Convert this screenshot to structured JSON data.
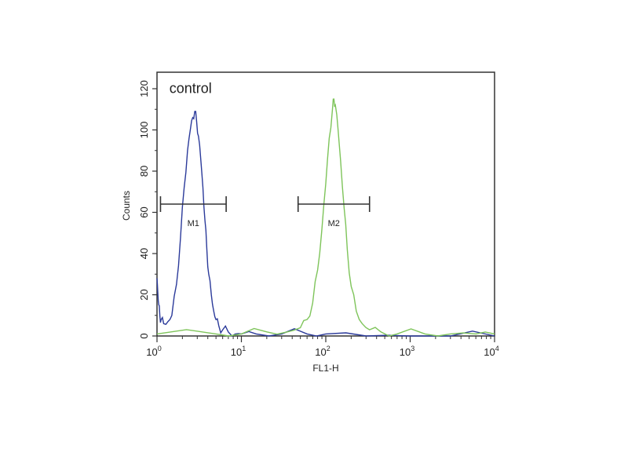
{
  "chart_data": {
    "type": "line",
    "title": "",
    "xlabel": "FL1-H",
    "ylabel": "Counts",
    "xscale": "log",
    "xlim": [
      1,
      10000
    ],
    "ylim": [
      0,
      128
    ],
    "x_ticks": [
      {
        "base": "10",
        "exp": "0",
        "value": 1
      },
      {
        "base": "10",
        "exp": "1",
        "value": 10
      },
      {
        "base": "10",
        "exp": "2",
        "value": 100
      },
      {
        "base": "10",
        "exp": "3",
        "value": 1000
      },
      {
        "base": "10",
        "exp": "4",
        "value": 10000
      }
    ],
    "y_ticks": [
      "0",
      "20",
      "40",
      "60",
      "80",
      "100",
      "120"
    ],
    "grid": false,
    "legend": "none",
    "annotations": [
      {
        "text": "control",
        "x": 1.4,
        "y": 118
      }
    ],
    "gates": [
      {
        "label": "M1",
        "x_start": 1.1,
        "x_end": 6.6,
        "y": 64
      },
      {
        "label": "M2",
        "x_start": 47,
        "x_end": 330,
        "y": 64
      }
    ],
    "series": [
      {
        "color": "#2b3a9a",
        "x": [
          1.0,
          1.02,
          1.05,
          1.08,
          1.12,
          1.2,
          1.35,
          1.5,
          1.7,
          1.9,
          2.1,
          2.3,
          2.5,
          2.65,
          2.8,
          2.95,
          3.1,
          3.3,
          3.5,
          3.7,
          3.9,
          4.1,
          4.4,
          4.7,
          5.0,
          5.4,
          6.0,
          7.0,
          8.5,
          10,
          15,
          30,
          60,
          100,
          300,
          1000,
          3000,
          10000
        ],
        "y": [
          28,
          22,
          15,
          10,
          8,
          6,
          7,
          10,
          25,
          48,
          72,
          90,
          101,
          106,
          109,
          104,
          97,
          86,
          72,
          56,
          42,
          30,
          20,
          12,
          8,
          5,
          3,
          2,
          1,
          1,
          1,
          1,
          1,
          1,
          0,
          0,
          0,
          0
        ]
      },
      {
        "color": "#7ec45a",
        "x": [
          1.0,
          5,
          10,
          20,
          35,
          50,
          60,
          70,
          80,
          90,
          100,
          110,
          120,
          125,
          130,
          140,
          150,
          165,
          180,
          200,
          230,
          270,
          330,
          450,
          700,
          1500,
          3000,
          6000,
          10000
        ],
        "y": [
          1,
          1,
          1,
          2,
          2,
          4,
          8,
          16,
          32,
          52,
          74,
          96,
          110,
          115,
          112,
          100,
          85,
          62,
          42,
          24,
          12,
          6,
          3,
          2,
          1,
          1,
          1,
          1,
          1
        ]
      }
    ]
  }
}
